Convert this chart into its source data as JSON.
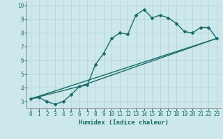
{
  "xlabel": "Humidex (Indice chaleur)",
  "background_color": "#cce8ea",
  "grid_color": "#b8d4d6",
  "line_color": "#1a6b6b",
  "xlim": [
    -0.5,
    23.5
  ],
  "ylim": [
    2.5,
    10.3
  ],
  "xticks": [
    0,
    1,
    2,
    3,
    4,
    5,
    6,
    7,
    8,
    9,
    10,
    11,
    12,
    13,
    14,
    15,
    16,
    17,
    18,
    19,
    20,
    21,
    22,
    23
  ],
  "yticks": [
    3,
    4,
    5,
    6,
    7,
    8,
    9,
    10
  ],
  "line1_x": [
    0,
    1,
    2,
    3,
    4,
    5,
    6,
    7,
    8,
    9,
    10,
    11,
    12,
    13,
    14,
    15,
    16,
    17,
    18,
    19,
    20,
    21,
    22,
    23
  ],
  "line1_y": [
    3.2,
    3.3,
    3.0,
    2.8,
    3.0,
    3.5,
    4.1,
    4.2,
    5.7,
    6.5,
    7.6,
    8.0,
    7.9,
    9.3,
    9.7,
    9.1,
    9.3,
    9.1,
    8.7,
    8.1,
    8.0,
    8.4,
    8.4,
    7.6
  ],
  "line2_x": [
    0,
    23
  ],
  "line2_y": [
    3.2,
    7.6
  ],
  "line3_x": [
    0,
    6,
    23
  ],
  "line3_y": [
    3.2,
    4.1,
    7.6
  ],
  "marker_size": 2.0,
  "linewidth": 1.0,
  "tick_fontsize": 5.5,
  "xlabel_fontsize": 6.5
}
